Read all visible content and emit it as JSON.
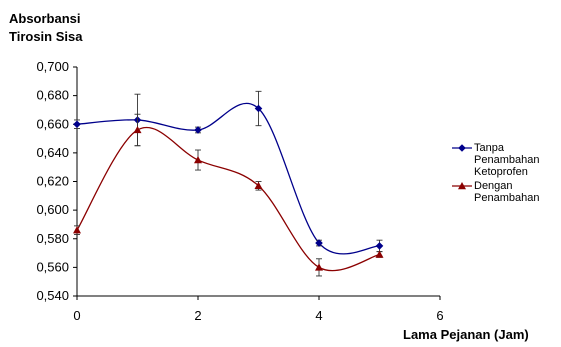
{
  "chart_data": {
    "type": "line",
    "ylabel_line1": "Absorbansi",
    "ylabel_line2": "Tirosin Sisa",
    "xlabel": "Lama Pejanan (Jam)",
    "xlim": [
      0,
      6
    ],
    "ylim": [
      0.54,
      0.7
    ],
    "x_ticks": [
      "0",
      "2",
      "4",
      "6"
    ],
    "y_ticks": [
      "0,540",
      "0,560",
      "0,580",
      "0,600",
      "0,620",
      "0,640",
      "0,660",
      "0,680",
      "0,700"
    ],
    "grid": false,
    "legend_position": "right",
    "series": [
      {
        "name": "Tanpa Penambahan Ketoprofen",
        "legend_label": "Tanpa\nPenambahan\nKetoprofen",
        "color": "#00008B",
        "marker": "diamond",
        "x": [
          0,
          1,
          2,
          3,
          4,
          5
        ],
        "y": [
          0.66,
          0.663,
          0.656,
          0.671,
          0.577,
          0.575
        ],
        "err": [
          0.003,
          0.018,
          0.002,
          0.012,
          0.002,
          0.004
        ]
      },
      {
        "name": "Dengan Penambahan",
        "legend_label": "Dengan\nPenambahan",
        "color": "#8B0000",
        "marker": "triangle",
        "x": [
          0,
          1,
          2,
          3,
          4,
          5
        ],
        "y": [
          0.586,
          0.656,
          0.635,
          0.617,
          0.56,
          0.569
        ],
        "err": [
          0.003,
          0.011,
          0.007,
          0.003,
          0.006,
          0.002
        ]
      }
    ]
  }
}
